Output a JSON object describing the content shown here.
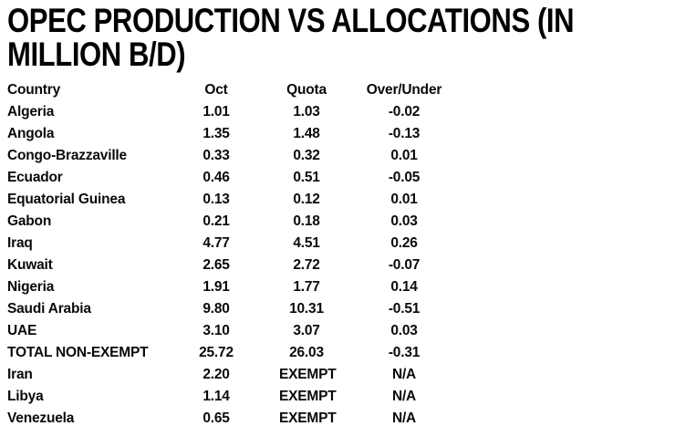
{
  "title": "OPEC PRODUCTION VS ALLOCATIONS (IN MILLION B/D)",
  "table": {
    "columns": [
      "Country",
      "Oct",
      "Quota",
      "Over/Under"
    ],
    "rows": [
      [
        "Algeria",
        "1.01",
        "1.03",
        "-0.02"
      ],
      [
        "Angola",
        "1.35",
        "1.48",
        "-0.13"
      ],
      [
        "Congo-Brazzaville",
        "0.33",
        "0.32",
        "0.01"
      ],
      [
        "Ecuador",
        "0.46",
        "0.51",
        "-0.05"
      ],
      [
        "Equatorial Guinea",
        "0.13",
        "0.12",
        "0.01"
      ],
      [
        "Gabon",
        "0.21",
        "0.18",
        "0.03"
      ],
      [
        "Iraq",
        "4.77",
        "4.51",
        "0.26"
      ],
      [
        "Kuwait",
        "2.65",
        "2.72",
        "-0.07"
      ],
      [
        "Nigeria",
        "1.91",
        "1.77",
        "0.14"
      ],
      [
        "Saudi Arabia",
        "9.80",
        "10.31",
        "-0.51"
      ],
      [
        "UAE",
        "3.10",
        "3.07",
        "0.03"
      ],
      [
        "TOTAL NON-EXEMPT",
        "25.72",
        "26.03",
        "-0.31"
      ],
      [
        "Iran",
        "2.20",
        "EXEMPT",
        "N/A"
      ],
      [
        "Libya",
        "1.14",
        "EXEMPT",
        "N/A"
      ],
      [
        "Venezuela",
        "0.65",
        "EXEMPT",
        "N/A"
      ]
    ]
  },
  "chart_data": {
    "type": "table",
    "title": "OPEC PRODUCTION VS ALLOCATIONS (IN MILLION B/D)",
    "columns": [
      "Country",
      "Oct",
      "Quota",
      "Over/Under"
    ],
    "rows": [
      {
        "country": "Algeria",
        "oct": 1.01,
        "quota": 1.03,
        "over_under": -0.02
      },
      {
        "country": "Angola",
        "oct": 1.35,
        "quota": 1.48,
        "over_under": -0.13
      },
      {
        "country": "Congo-Brazzaville",
        "oct": 0.33,
        "quota": 0.32,
        "over_under": 0.01
      },
      {
        "country": "Ecuador",
        "oct": 0.46,
        "quota": 0.51,
        "over_under": -0.05
      },
      {
        "country": "Equatorial Guinea",
        "oct": 0.13,
        "quota": 0.12,
        "over_under": 0.01
      },
      {
        "country": "Gabon",
        "oct": 0.21,
        "quota": 0.18,
        "over_under": 0.03
      },
      {
        "country": "Iraq",
        "oct": 4.77,
        "quota": 4.51,
        "over_under": 0.26
      },
      {
        "country": "Kuwait",
        "oct": 2.65,
        "quota": 2.72,
        "over_under": -0.07
      },
      {
        "country": "Nigeria",
        "oct": 1.91,
        "quota": 1.77,
        "over_under": 0.14
      },
      {
        "country": "Saudi Arabia",
        "oct": 9.8,
        "quota": 10.31,
        "over_under": -0.51
      },
      {
        "country": "UAE",
        "oct": 3.1,
        "quota": 3.07,
        "over_under": 0.03
      },
      {
        "country": "TOTAL NON-EXEMPT",
        "oct": 25.72,
        "quota": 26.03,
        "over_under": -0.31
      },
      {
        "country": "Iran",
        "oct": 2.2,
        "quota": "EXEMPT",
        "over_under": "N/A"
      },
      {
        "country": "Libya",
        "oct": 1.14,
        "quota": "EXEMPT",
        "over_under": "N/A"
      },
      {
        "country": "Venezuela",
        "oct": 0.65,
        "quota": "EXEMPT",
        "over_under": "N/A"
      }
    ],
    "units": "million b/d",
    "colors": {
      "text": "#000000",
      "background": "#ffffff"
    }
  }
}
